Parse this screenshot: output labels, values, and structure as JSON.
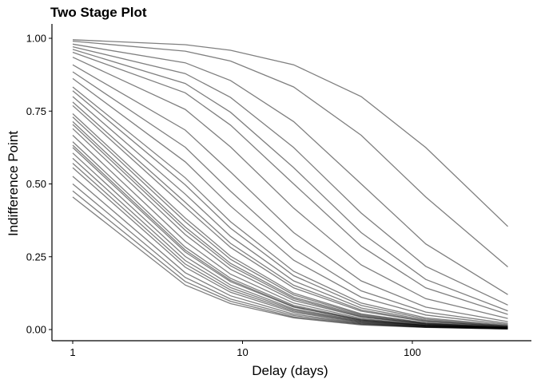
{
  "chart_data": {
    "type": "line",
    "title": "Two Stage Plot",
    "xlabel": "Delay (days)",
    "ylabel": "Indifference Point",
    "x_scale": "log10",
    "xlim": [
      1,
      365
    ],
    "ylim": [
      0,
      1
    ],
    "x_ticks": [
      1,
      10,
      100
    ],
    "x_tick_labels": [
      "1",
      "10",
      "100"
    ],
    "y_ticks": [
      0,
      0.25,
      0.5,
      0.75,
      1
    ],
    "y_tick_labels": [
      "0.00",
      "0.25",
      "0.50",
      "0.75",
      "1.00"
    ],
    "grid": false,
    "legend": "none",
    "line_color": "#000000",
    "x": [
      1,
      4.6,
      8.5,
      20,
      50,
      120,
      365
    ],
    "series": [
      {
        "values": [
          0.995,
          0.978,
          0.959,
          0.909,
          0.8,
          0.625,
          0.354
        ]
      },
      {
        "values": [
          0.99,
          0.956,
          0.922,
          0.833,
          0.667,
          0.455,
          0.215
        ]
      },
      {
        "values": [
          0.98,
          0.916,
          0.855,
          0.714,
          0.5,
          0.294,
          0.12
        ]
      },
      {
        "values": [
          0.971,
          0.879,
          0.797,
          0.625,
          0.4,
          0.217,
          0.084
        ]
      },
      {
        "values": [
          0.962,
          0.845,
          0.746,
          0.556,
          0.333,
          0.172,
          0.064
        ]
      },
      {
        "values": [
          0.952,
          0.813,
          0.702,
          0.5,
          0.286,
          0.143,
          0.052
        ]
      },
      {
        "values": [
          0.935,
          0.756,
          0.627,
          0.417,
          0.222,
          0.106,
          0.038
        ]
      },
      {
        "values": [
          0.909,
          0.685,
          0.541,
          0.333,
          0.167,
          0.077,
          0.027
        ]
      },
      {
        "values": [
          0.885,
          0.626,
          0.475,
          0.278,
          0.133,
          0.06,
          0.021
        ]
      },
      {
        "values": [
          0.862,
          0.576,
          0.424,
          0.238,
          0.111,
          0.05,
          0.017
        ]
      },
      {
        "values": [
          0.833,
          0.521,
          0.37,
          0.2,
          0.091,
          0.04,
          0.014
        ]
      },
      {
        "values": [
          0.82,
          0.497,
          0.348,
          0.185,
          0.083,
          0.036,
          0.012
        ]
      },
      {
        "values": [
          0.8,
          0.465,
          0.32,
          0.167,
          0.074,
          0.032,
          0.011
        ]
      },
      {
        "values": [
          0.781,
          0.437,
          0.296,
          0.152,
          0.067,
          0.029,
          0.01
        ]
      },
      {
        "values": [
          0.769,
          0.42,
          0.282,
          0.143,
          0.063,
          0.027,
          0.009
        ]
      },
      {
        "values": [
          0.741,
          0.383,
          0.252,
          0.125,
          0.054,
          0.023,
          0.008
        ]
      },
      {
        "values": [
          0.73,
          0.37,
          0.241,
          0.119,
          0.051,
          0.022,
          0.007
        ]
      },
      {
        "values": [
          0.714,
          0.352,
          0.227,
          0.111,
          0.048,
          0.02,
          0.007
        ]
      },
      {
        "values": [
          0.704,
          0.341,
          0.219,
          0.106,
          0.045,
          0.019,
          0.006
        ]
      },
      {
        "values": [
          0.69,
          0.326,
          0.207,
          0.1,
          0.043,
          0.018,
          0.006
        ]
      },
      {
        "values": [
          0.667,
          0.303,
          0.19,
          0.091,
          0.038,
          0.016,
          0.005
        ]
      },
      {
        "values": [
          0.645,
          0.283,
          0.176,
          0.083,
          0.035,
          0.015,
          0.005
        ]
      },
      {
        "values": [
          0.633,
          0.273,
          0.169,
          0.079,
          0.033,
          0.014,
          0.005
        ]
      },
      {
        "values": [
          0.625,
          0.266,
          0.164,
          0.077,
          0.032,
          0.014,
          0.005
        ]
      },
      {
        "values": [
          0.606,
          0.251,
          0.153,
          0.071,
          0.03,
          0.013,
          0.004
        ]
      },
      {
        "values": [
          0.588,
          0.237,
          0.144,
          0.067,
          0.028,
          0.012,
          0.004
        ]
      },
      {
        "values": [
          0.571,
          0.225,
          0.136,
          0.063,
          0.026,
          0.011,
          0.004
        ]
      },
      {
        "values": [
          0.556,
          0.214,
          0.128,
          0.059,
          0.024,
          0.01,
          0.003
        ]
      },
      {
        "values": [
          0.526,
          0.195,
          0.116,
          0.053,
          0.022,
          0.009,
          0.003
        ]
      },
      {
        "values": [
          0.5,
          0.179,
          0.105,
          0.048,
          0.02,
          0.008,
          0.003
        ]
      },
      {
        "values": [
          0.476,
          0.165,
          0.097,
          0.043,
          0.018,
          0.008,
          0.002
        ]
      },
      {
        "values": [
          0.455,
          0.153,
          0.089,
          0.04,
          0.016,
          0.007,
          0.002
        ]
      }
    ]
  }
}
